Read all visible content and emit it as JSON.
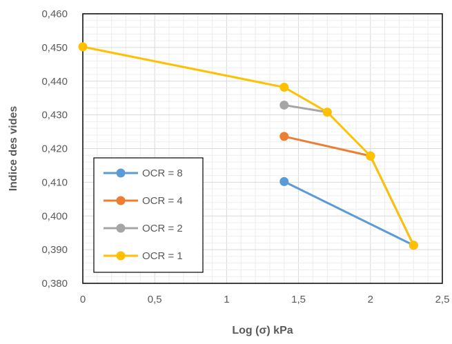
{
  "chart_data": {
    "type": "line",
    "xlabel": "Log (σ) kPa",
    "ylabel": "Indice des vides",
    "xlim": [
      0,
      2.5
    ],
    "ylim": [
      0.38,
      0.46
    ],
    "x_ticks": [
      "0",
      "0,5",
      "1",
      "1,5",
      "2",
      "2,5"
    ],
    "y_ticks": [
      "0,380",
      "0,390",
      "0,400",
      "0,410",
      "0,420",
      "0,430",
      "0,440",
      "0,450",
      "0,460"
    ],
    "grid": {
      "major": true,
      "minor": true
    },
    "legend_position": "bottom-left",
    "series": [
      {
        "name": "OCR = 8",
        "color": "#5B9BD5",
        "points": [
          [
            1.4,
            0.4102
          ],
          [
            2.3,
            0.3913
          ],
          [
            2.0,
            0.4178
          ]
        ]
      },
      {
        "name": "OCR = 4",
        "color": "#ED7D31",
        "points": [
          [
            1.4,
            0.4236
          ],
          [
            2.0,
            0.4178
          ]
        ]
      },
      {
        "name": "OCR = 2",
        "color": "#A5A5A5",
        "points": [
          [
            1.4,
            0.4329
          ],
          [
            1.7,
            0.4308
          ]
        ]
      },
      {
        "name": "OCR = 1",
        "color": "#FFC000",
        "points": [
          [
            0,
            0.4502
          ],
          [
            1.4,
            0.4382
          ],
          [
            1.7,
            0.4308
          ],
          [
            2.0,
            0.4178
          ],
          [
            2.3,
            0.3913
          ]
        ]
      }
    ]
  }
}
